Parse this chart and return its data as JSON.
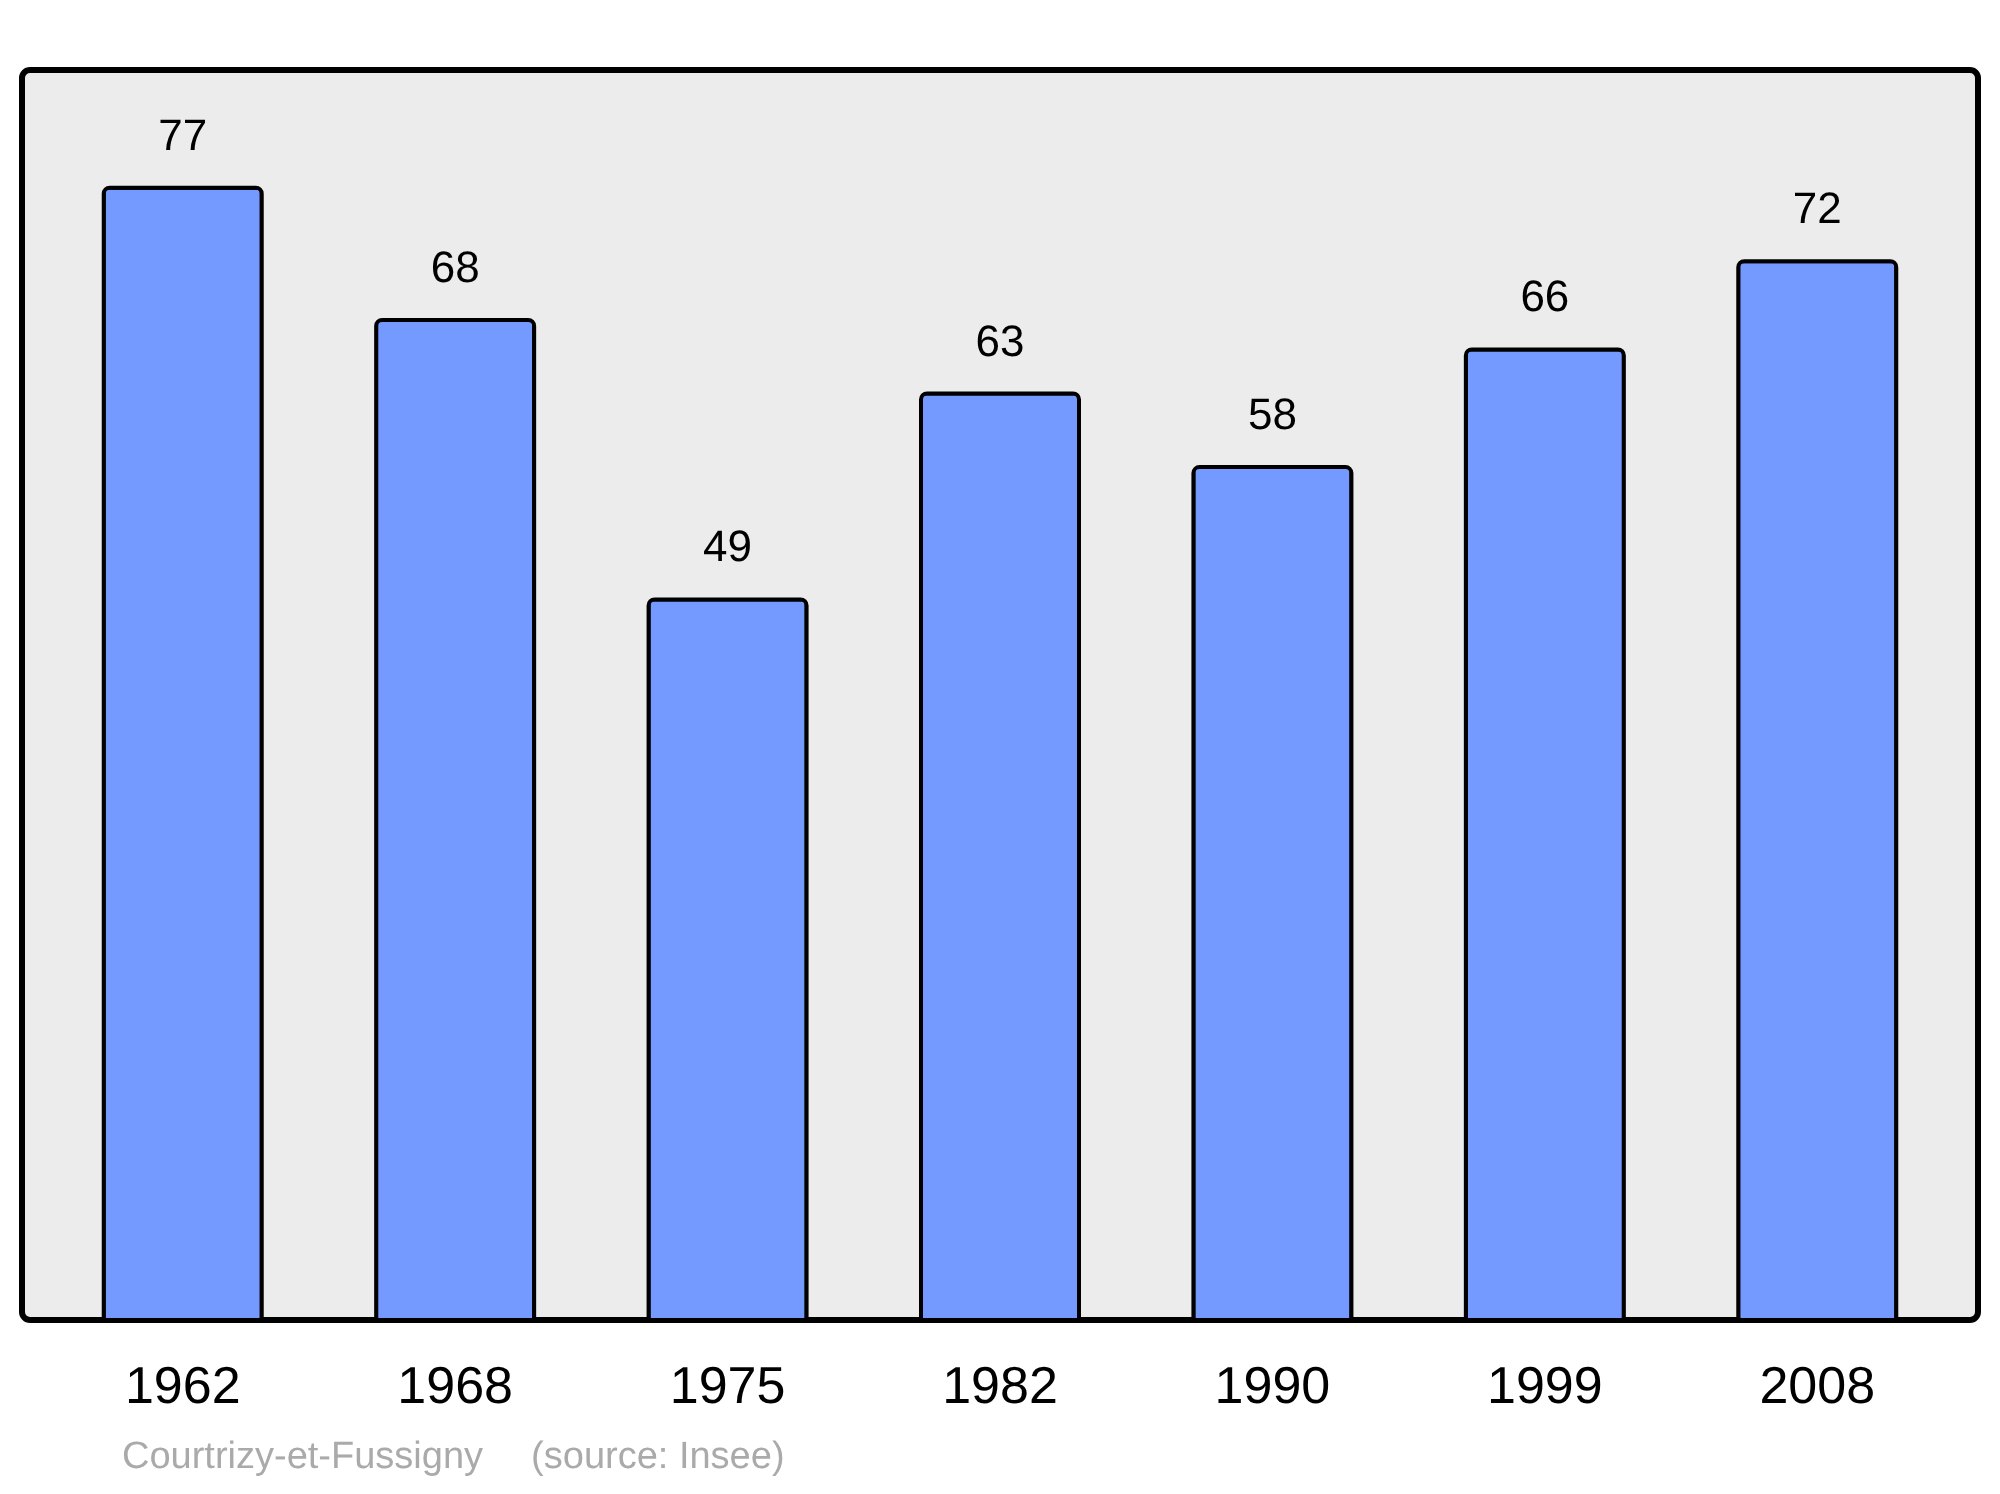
{
  "chart_data": {
    "type": "bar",
    "categories": [
      "1962",
      "1968",
      "1975",
      "1982",
      "1990",
      "1999",
      "2008"
    ],
    "values": [
      77,
      68,
      49,
      63,
      58,
      66,
      72
    ],
    "color": "#7499ff",
    "ylim": [
      0,
      85
    ],
    "data_labels": true,
    "grid": false,
    "annotations": [
      "Courtrizy-et-Fussigny",
      "(source: Insee)"
    ]
  }
}
